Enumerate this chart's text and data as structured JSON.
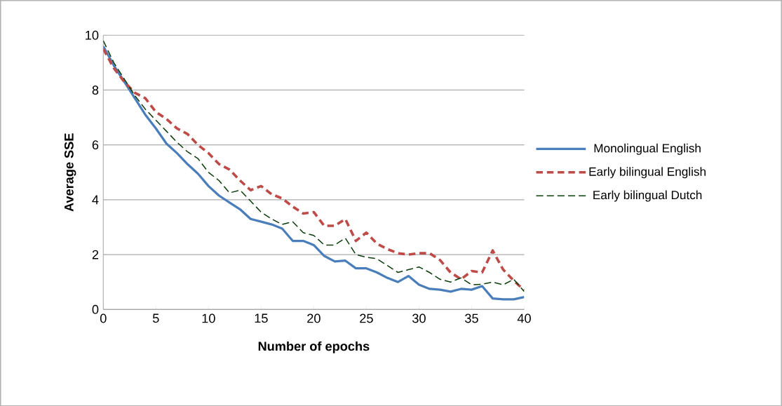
{
  "chart_data": {
    "type": "line",
    "xlabel": "Number of epochs",
    "ylabel": "Average SSE",
    "x": [
      0,
      1,
      2,
      3,
      4,
      5,
      6,
      7,
      8,
      9,
      10,
      11,
      12,
      13,
      14,
      15,
      16,
      17,
      18,
      19,
      20,
      21,
      22,
      23,
      24,
      25,
      26,
      27,
      28,
      29,
      30,
      31,
      32,
      33,
      34,
      35,
      36,
      37,
      38,
      39,
      40
    ],
    "series": [
      {
        "name": "Monolingual English",
        "color": "#4a7ebb",
        "line_style": "solid",
        "values": [
          9.6,
          8.9,
          8.3,
          7.7,
          7.1,
          6.6,
          6.05,
          5.7,
          5.3,
          4.95,
          4.5,
          4.15,
          3.9,
          3.65,
          3.3,
          3.2,
          3.1,
          2.95,
          2.5,
          2.5,
          2.35,
          1.95,
          1.75,
          1.78,
          1.5,
          1.5,
          1.35,
          1.15,
          1.0,
          1.22,
          0.9,
          0.75,
          0.72,
          0.65,
          0.75,
          0.72,
          0.85,
          0.4,
          0.37,
          0.37,
          0.45
        ]
      },
      {
        "name": "Early bilingual English",
        "color": "#be4b48",
        "line_style": "dashed",
        "values": [
          9.5,
          8.8,
          8.3,
          7.9,
          7.7,
          7.2,
          6.95,
          6.6,
          6.4,
          6.0,
          5.7,
          5.3,
          5.1,
          4.7,
          4.35,
          4.5,
          4.2,
          4.05,
          3.75,
          3.5,
          3.55,
          3.05,
          3.05,
          3.3,
          2.5,
          2.8,
          2.4,
          2.2,
          2.05,
          2.0,
          2.05,
          2.05,
          1.8,
          1.35,
          1.1,
          1.4,
          1.35,
          2.15,
          1.45,
          1.05,
          0.7
        ]
      },
      {
        "name": "Early bilingual Dutch",
        "color": "#0b3d0b",
        "line_style": "dashed",
        "values": [
          9.8,
          9.0,
          8.4,
          7.8,
          7.3,
          6.9,
          6.5,
          6.1,
          5.75,
          5.5,
          5.0,
          4.7,
          4.25,
          4.35,
          3.95,
          3.55,
          3.3,
          3.1,
          3.2,
          2.8,
          2.7,
          2.35,
          2.35,
          2.6,
          2.0,
          1.9,
          1.85,
          1.6,
          1.35,
          1.45,
          1.55,
          1.35,
          1.1,
          1.0,
          1.15,
          0.9,
          0.92,
          1.0,
          0.9,
          1.1,
          0.65
        ]
      }
    ],
    "xlim": [
      0,
      40
    ],
    "xticks": [
      0,
      5,
      10,
      15,
      20,
      25,
      30,
      35,
      40
    ],
    "ylim": [
      0,
      10
    ],
    "yticks": [
      0,
      2,
      4,
      6,
      8,
      10
    ],
    "grid": "y",
    "legend": "right",
    "marker": "none"
  }
}
